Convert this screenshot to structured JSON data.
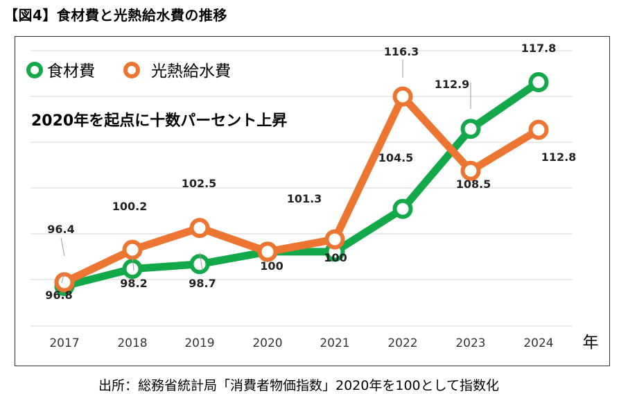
{
  "figure_title": "【図4】食材費と光熱給水費の推移",
  "source_note": "出所：総務省統計局「消費者物価指数」2020年を100として指数化",
  "chart_data": {
    "type": "line",
    "x": [
      "2017",
      "2018",
      "2019",
      "2020",
      "2021",
      "2022",
      "2023",
      "2024"
    ],
    "xlabel": "年",
    "ylabel": "",
    "ylim": [
      92.2,
      122.5
    ],
    "grid": true,
    "legend_position": "top-left",
    "annotation": "2020年を起点に十数パーセント上昇",
    "series": [
      {
        "name": "食材費",
        "color": "#13a84a",
        "values": [
          96.4,
          98.2,
          98.7,
          100,
          100,
          104.5,
          112.9,
          117.8
        ],
        "labels": [
          "96.4",
          "98.2",
          "98.7",
          "100",
          "100",
          "104.5",
          "112.9",
          "117.8"
        ]
      },
      {
        "name": "光熱給水費",
        "color": "#ec7532",
        "values": [
          96.8,
          100.2,
          102.5,
          100,
          101.3,
          116.3,
          108.5,
          112.8
        ],
        "labels": [
          "96.8",
          "100.2",
          "102.5",
          "100",
          "101.3",
          "116.3",
          "108.5",
          "112.8"
        ]
      }
    ]
  }
}
